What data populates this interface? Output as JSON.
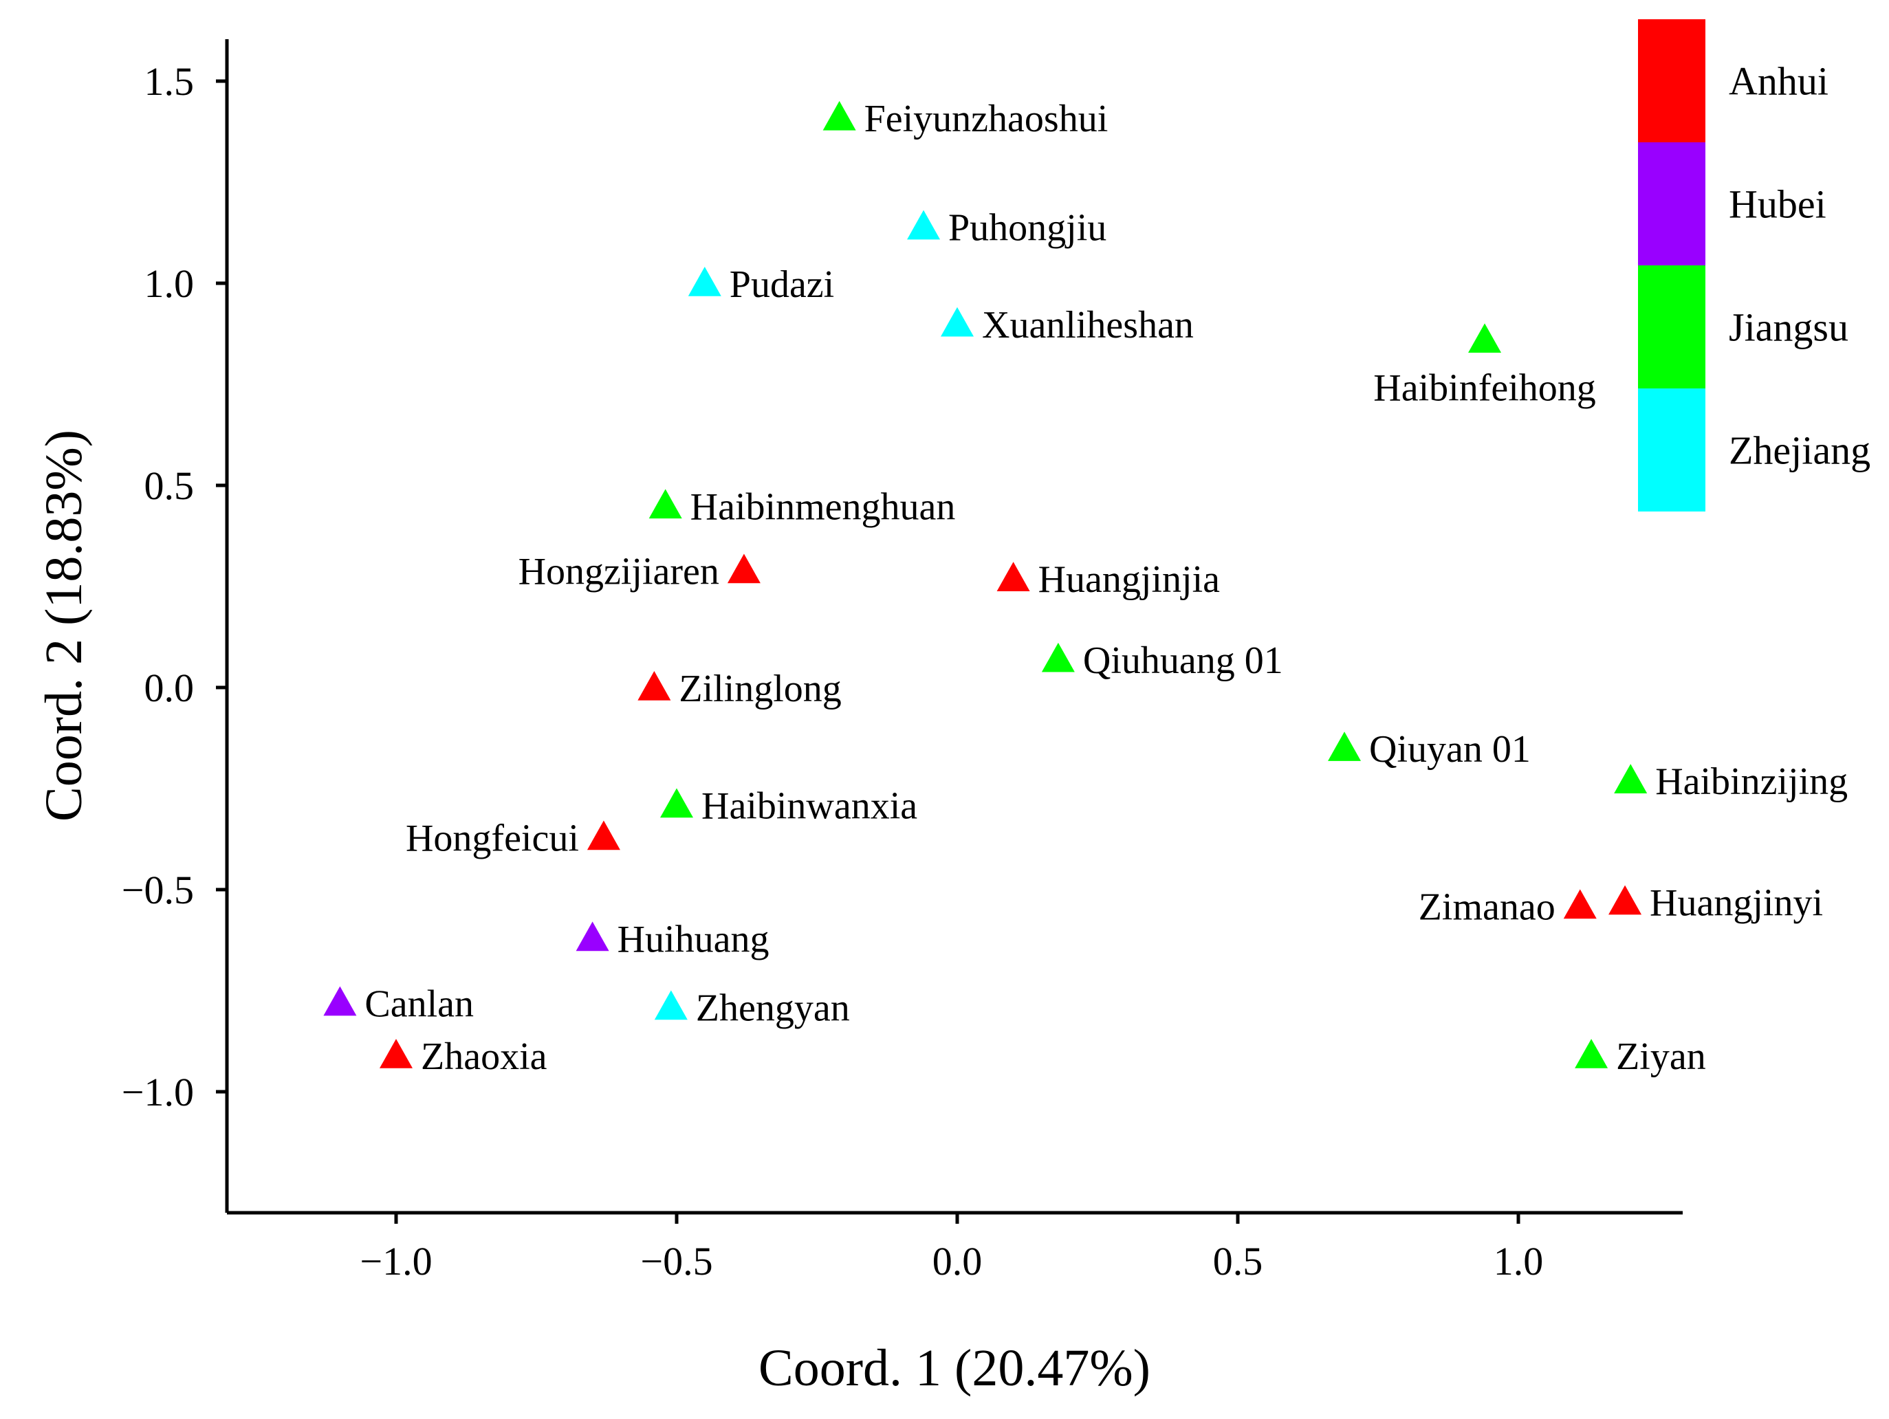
{
  "chart_data": {
    "type": "scatter",
    "title": "",
    "xlabel": "Coord. 1 (20.47%)",
    "ylabel": "Coord. 2 (18.83%)",
    "xlim": [
      -1.3,
      1.3
    ],
    "ylim": [
      -1.3,
      1.6
    ],
    "x_ticks": [
      -1.0,
      -0.5,
      0.0,
      0.5,
      1.0
    ],
    "x_tick_labels": [
      "−1.0",
      "−0.5",
      "0.0",
      "0.5",
      "1.0"
    ],
    "y_ticks": [
      -1.0,
      -0.5,
      0.0,
      0.5,
      1.0,
      1.5
    ],
    "y_tick_labels": [
      "−1.0",
      "−0.5",
      "0.0",
      "0.5",
      "1.0",
      "1.5"
    ],
    "grid": false,
    "marker": "triangle",
    "legend_position": "top-right",
    "legend": [
      {
        "name": "Anhui",
        "color": "#ff0000"
      },
      {
        "name": "Hubei",
        "color": "#9900ff"
      },
      {
        "name": "Jiangsu",
        "color": "#00ff00"
      },
      {
        "name": "Zhejiang",
        "color": "#00ffff"
      }
    ],
    "points": [
      {
        "label": "Feiyunzhaoshui",
        "group": "Jiangsu",
        "x": -0.21,
        "y": 1.41,
        "label_side": "right"
      },
      {
        "label": "Puhongjiu",
        "group": "Zhejiang",
        "x": -0.06,
        "y": 1.14,
        "label_side": "right"
      },
      {
        "label": "Pudazi",
        "group": "Zhejiang",
        "x": -0.45,
        "y": 1.0,
        "label_side": "right"
      },
      {
        "label": "Xuanliheshan",
        "group": "Zhejiang",
        "x": 0.0,
        "y": 0.9,
        "label_side": "right"
      },
      {
        "label": "Haibinfeihong",
        "group": "Jiangsu",
        "x": 0.94,
        "y": 0.86,
        "label_side": "below"
      },
      {
        "label": "Haibinmenghuan",
        "group": "Jiangsu",
        "x": -0.52,
        "y": 0.45,
        "label_side": "right"
      },
      {
        "label": "Hongzijiaren",
        "group": "Anhui",
        "x": -0.38,
        "y": 0.29,
        "label_side": "left"
      },
      {
        "label": "Huangjinjia",
        "group": "Anhui",
        "x": 0.1,
        "y": 0.27,
        "label_side": "right"
      },
      {
        "label": "Qiuhuang 01",
        "group": "Jiangsu",
        "x": 0.18,
        "y": 0.07,
        "label_side": "right"
      },
      {
        "label": "Zilinglong",
        "group": "Anhui",
        "x": -0.54,
        "y": -0.0,
        "label_side": "right"
      },
      {
        "label": "Qiuyan 01",
        "group": "Jiangsu",
        "x": 0.69,
        "y": -0.15,
        "label_side": "right"
      },
      {
        "label": "Haibinzijing",
        "group": "Jiangsu",
        "x": 1.2,
        "y": -0.23,
        "label_side": "right"
      },
      {
        "label": "Haibinwanxia",
        "group": "Jiangsu",
        "x": -0.5,
        "y": -0.29,
        "label_side": "right"
      },
      {
        "label": "Hongfeicui",
        "group": "Anhui",
        "x": -0.63,
        "y": -0.37,
        "label_side": "left"
      },
      {
        "label": "Zimanao",
        "group": "Anhui",
        "x": 1.11,
        "y": -0.54,
        "label_side": "left"
      },
      {
        "label": "Huangjinyi",
        "group": "Anhui",
        "x": 1.19,
        "y": -0.53,
        "label_side": "right"
      },
      {
        "label": "Huihuang",
        "group": "Hubei",
        "x": -0.65,
        "y": -0.62,
        "label_side": "right"
      },
      {
        "label": "Canlan",
        "group": "Hubei",
        "x": -1.1,
        "y": -0.78,
        "label_side": "right"
      },
      {
        "label": "Zhengyan",
        "group": "Zhejiang",
        "x": -0.51,
        "y": -0.79,
        "label_side": "right"
      },
      {
        "label": "Zhaoxia",
        "group": "Anhui",
        "x": -1.0,
        "y": -0.91,
        "label_side": "right"
      },
      {
        "label": "Ziyan",
        "group": "Jiangsu",
        "x": 1.13,
        "y": -0.91,
        "label_side": "right"
      }
    ]
  }
}
